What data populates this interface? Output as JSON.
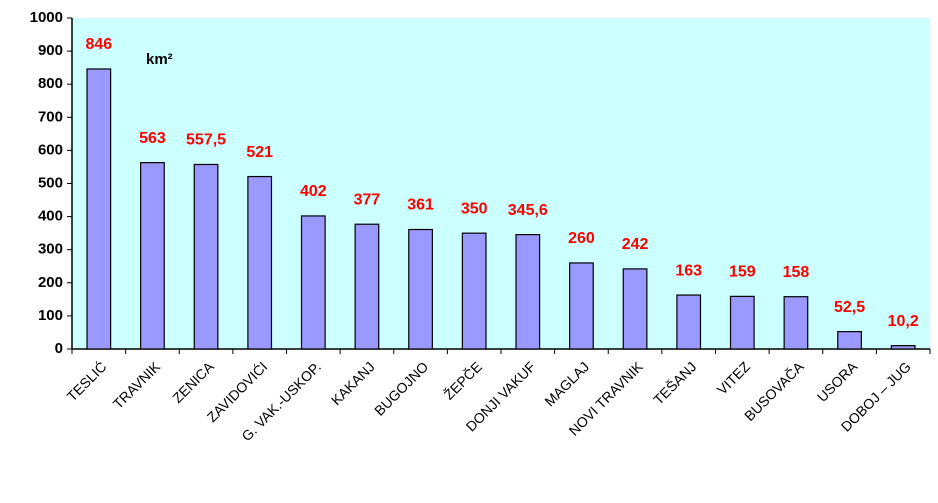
{
  "chart_data": {
    "type": "bar",
    "annotation": "km²",
    "categories": [
      "TESLIĆ",
      "TRAVNIK",
      "ZENICA",
      "ZAVIDOVIĆI",
      "G. VAK.-USKOP.",
      "KAKANJ",
      "BUGOJNO",
      "ŽEPČE",
      "DONJI VAKUF",
      "MAGLAJ",
      "NOVI TRAVNIK",
      "TEŠANJ",
      "VITEZ",
      "BUSOVAČA",
      "USORA",
      "DOBOJ – JUG"
    ],
    "values": [
      846,
      563,
      557.5,
      521,
      402,
      377,
      361,
      350,
      345.6,
      260,
      242,
      163,
      159,
      158,
      52.5,
      10.2
    ],
    "value_labels": [
      "846",
      "563",
      "557,5",
      "521",
      "402",
      "377",
      "361",
      "350",
      "345,6",
      "260",
      "242",
      "163",
      "159",
      "158",
      "52,5",
      "10,2"
    ],
    "color": "#9999ff",
    "label_color": "#ff0000",
    "plot_background": "#ccffff",
    "ylim": [
      0,
      1000
    ],
    "yticks": [
      0,
      100,
      200,
      300,
      400,
      500,
      600,
      700,
      800,
      900,
      1000
    ]
  }
}
